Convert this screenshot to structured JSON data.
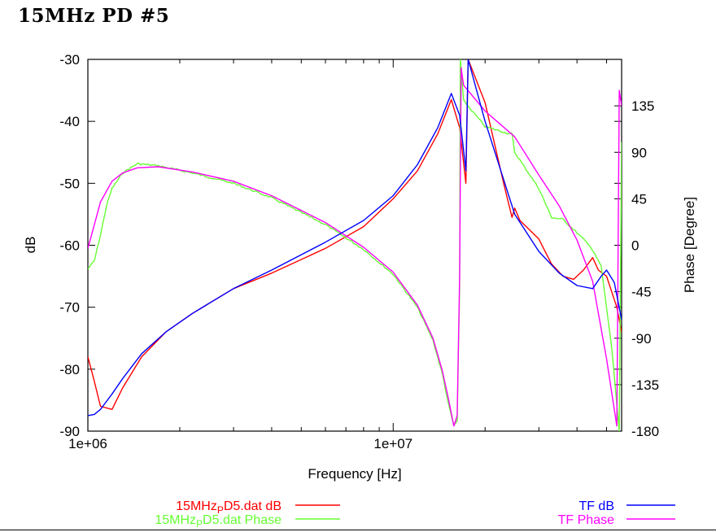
{
  "page": {
    "title": "15MHz PD #5"
  },
  "chart_data": {
    "type": "line",
    "xscale": "log",
    "xlim": [
      1000000,
      56000000
    ],
    "ylim_left": [
      -90,
      -30
    ],
    "ylim_right": [
      -180,
      180
    ],
    "xlabel": "Frequency [Hz]",
    "ylabel_left": "dB",
    "ylabel_right": "Phase [Degree]",
    "x_ticks": [
      {
        "value": 1000000,
        "label": "1e+06"
      },
      {
        "value": 10000000,
        "label": "1e+07"
      }
    ],
    "y_ticks_left": [
      "-30",
      "-40",
      "-50",
      "-60",
      "-70",
      "-80",
      "-90"
    ],
    "y_ticks_right": [
      "135",
      "90",
      "45",
      "0",
      "-45",
      "-90",
      "-135",
      "-180"
    ],
    "grid": false,
    "legend_placement": "bottom",
    "series": [
      {
        "name": "15MHz_PD5.dat dB",
        "name_main": "15MHz",
        "name_sub": "P",
        "name_rest": "D5.dat dB",
        "axis": "left",
        "color": "#ff0000",
        "x": [
          1000000,
          1050000,
          1100000,
          1200000,
          1300000,
          1500000,
          1800000,
          2200000,
          3000000,
          4000000,
          6000000,
          8000000,
          10000000,
          12000000,
          14000000,
          15500000,
          16500000,
          17300000,
          17600000,
          20000000,
          23000000,
          24500000,
          25000000,
          26000000,
          30000000,
          33000000,
          36000000,
          39000000,
          42000000,
          45000000,
          47000000,
          50000000,
          54000000,
          56000000
        ],
        "y": [
          -78,
          -82,
          -86,
          -86.5,
          -83,
          -78,
          -74,
          -71,
          -67,
          -64.5,
          -60.5,
          -57,
          -52.5,
          -48,
          -42,
          -36.5,
          -41,
          -50,
          -30,
          -37,
          -50,
          -55.5,
          -54,
          -56,
          -59,
          -63,
          -65,
          -65.5,
          -64,
          -62,
          -64,
          -65,
          -70,
          -74
        ]
      },
      {
        "name": "15MHz_PD5.dat Phase",
        "name_main": "15MHz",
        "name_sub": "P",
        "name_rest": "D5.dat Phase",
        "axis": "right",
        "color": "#66ff33",
        "x": [
          1000000,
          1050000,
          1100000,
          1150000,
          1200000,
          1300000,
          1450000,
          1700000,
          2200000,
          3000000,
          4000000,
          6000000,
          8000000,
          10000000,
          12000000,
          13500000,
          14500000,
          15200000,
          15800000,
          16200000,
          16500000,
          16600000,
          17000000,
          20000000,
          24000000,
          24500000,
          25000000,
          30000000,
          33000000,
          36000000,
          40000000,
          44000000,
          48000000,
          52000000,
          55000000,
          56000000
        ],
        "y": [
          -23,
          -15,
          10,
          38,
          55,
          70,
          79,
          77,
          70,
          60,
          46,
          20,
          -4,
          -28,
          -60,
          -92,
          -125,
          -155,
          -175,
          -170,
          -40,
          180,
          140,
          115,
          108,
          108,
          90,
          55,
          27,
          25,
          12,
          0,
          -20,
          -100,
          -180,
          100
        ],
        "noise": true
      },
      {
        "name": "TF dB",
        "axis": "left",
        "color": "#0000ff",
        "x": [
          1000000,
          1050000,
          1100000,
          1200000,
          1300000,
          1500000,
          1800000,
          2200000,
          3000000,
          4000000,
          6000000,
          8000000,
          10000000,
          12000000,
          14000000,
          15500000,
          16500000,
          17300000,
          17600000,
          20000000,
          25000000,
          30000000,
          35000000,
          40000000,
          45000000,
          48000000,
          50000000,
          53000000,
          56000000
        ],
        "y": [
          -87.5,
          -87.3,
          -86.5,
          -84,
          -81.5,
          -77.5,
          -74,
          -71,
          -67,
          -64,
          -59.5,
          -56,
          -52,
          -47,
          -41,
          -35.5,
          -39,
          -48,
          -30,
          -40,
          -55,
          -61,
          -64.5,
          -66.5,
          -67,
          -65,
          -64,
          -66,
          -72
        ]
      },
      {
        "name": "TF Phase",
        "axis": "right",
        "color": "#ff00ff",
        "x": [
          1000000,
          1050000,
          1100000,
          1200000,
          1300000,
          1450000,
          1700000,
          2200000,
          3000000,
          4000000,
          6000000,
          8000000,
          10000000,
          12000000,
          13500000,
          14500000,
          15200000,
          15800000,
          16200000,
          16500000,
          16700000,
          17000000,
          20000000,
          25000000,
          30000000,
          35000000,
          40000000,
          45000000,
          50000000,
          54000000,
          55000000,
          56000000
        ],
        "y": [
          -3,
          20,
          42,
          62,
          70,
          75,
          76,
          71,
          62,
          48,
          22,
          -2,
          -26,
          -58,
          -90,
          -122,
          -150,
          -175,
          -165,
          -30,
          172,
          155,
          130,
          105,
          68,
          38,
          5,
          -35,
          -110,
          -175,
          150,
          135
        ]
      }
    ]
  },
  "legend": {
    "left": [
      {
        "series": 0,
        "main": "15MHz",
        "sub": "P",
        "rest": "D5.dat dB",
        "color": "#ff0000"
      },
      {
        "series": 1,
        "main": "15MHz",
        "sub": "P",
        "rest": "D5.dat Phase",
        "color": "#66ff33"
      }
    ],
    "right": [
      {
        "series": 2,
        "label": "TF dB",
        "color": "#0000ff"
      },
      {
        "series": 3,
        "label": "TF Phase",
        "color": "#ff00ff"
      }
    ]
  }
}
